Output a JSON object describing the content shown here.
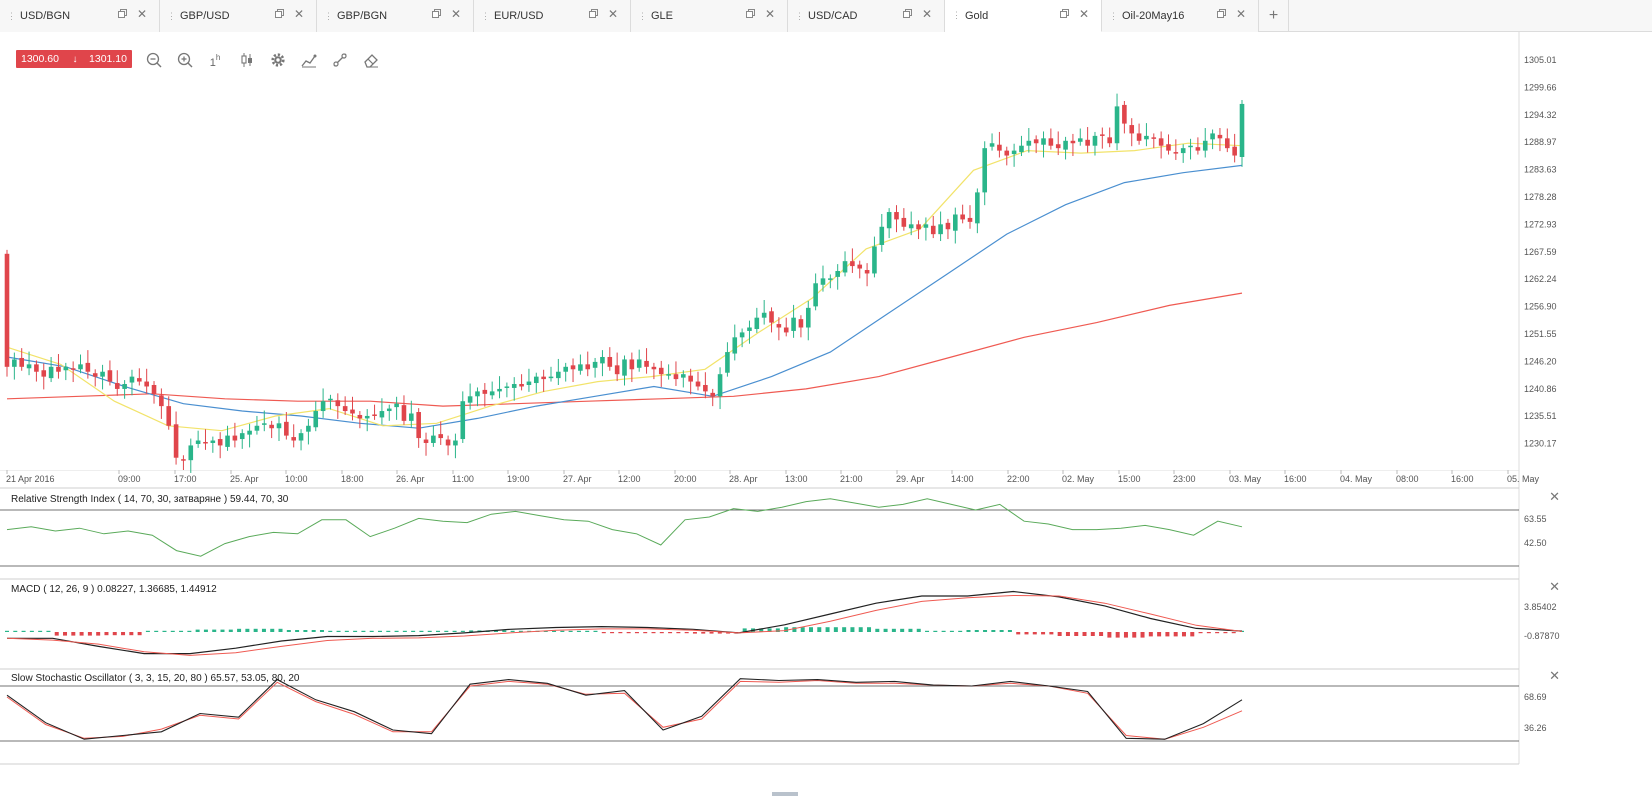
{
  "tabs": [
    {
      "label": "USD/BGN",
      "active": false
    },
    {
      "label": "GBP/USD",
      "active": false
    },
    {
      "label": "GBP/BGN",
      "active": false
    },
    {
      "label": "EUR/USD",
      "active": false
    },
    {
      "label": "GLE",
      "active": false
    },
    {
      "label": "USD/CAD",
      "active": false
    },
    {
      "label": "Gold",
      "active": true
    },
    {
      "label": "Oil-20May16",
      "active": false
    }
  ],
  "add_tab_label": "+",
  "price_badge": {
    "bid": "1300.60",
    "ask": "1301.10",
    "direction": "down"
  },
  "toolbar": {
    "timeframe": "1",
    "timeframe_unit": "h"
  },
  "icons": {
    "zoom_out": "zoom-out-icon",
    "zoom_in": "zoom-in-icon",
    "timeframe": "timeframe-icon",
    "chart_type": "candlestick-icon",
    "settings": "gear-icon",
    "indicators": "indicators-icon",
    "drawing": "drawing-tools-icon",
    "eraser": "eraser-icon"
  },
  "colors": {
    "bull": "#2ab58a",
    "bear": "#e0454b",
    "ma_fast": "#f2e36a",
    "ma_mid": "#4a8fd0",
    "ma_slow": "#ef5a52",
    "rsi_line": "#5aaa5a",
    "macd_line": "#222222",
    "macd_signal": "#ef5a52",
    "stoch_k": "#222222",
    "stoch_d": "#ef5a52"
  },
  "price_axis": [
    "1305.01",
    "1299.66",
    "1294.32",
    "1288.97",
    "1283.63",
    "1278.28",
    "1272.93",
    "1267.59",
    "1262.24",
    "1256.90",
    "1251.55",
    "1246.20",
    "1240.86",
    "1235.51",
    "1230.17"
  ],
  "time_axis": [
    "21 Apr 2016",
    "09:00",
    "17:00",
    "25. Apr",
    "10:00",
    "18:00",
    "26. Apr",
    "11:00",
    "19:00",
    "27. Apr",
    "12:00",
    "20:00",
    "28. Apr",
    "13:00",
    "21:00",
    "29. Apr",
    "14:00",
    "22:00",
    "02. May",
    "15:00",
    "23:00",
    "03. May",
    "16:00",
    "04. May",
    "08:00",
    "16:00",
    "05. May"
  ],
  "rsi": {
    "label": "Relative Strength Index ( 14, 70, 30, затваряне ) 59.44, 70, 30",
    "axis": [
      "63.55",
      "42.50"
    ]
  },
  "macd": {
    "label": "MACD ( 12, 26, 9 ) 0.08227, 1.36685, 1.44912",
    "axis": [
      "3.85402",
      "-0.87870"
    ]
  },
  "stoch": {
    "label": "Slow Stochastic Oscillator ( 3, 3, 15, 20, 80 ) 65.57, 53.05, 80, 20",
    "axis": [
      "68.69",
      "36.26"
    ]
  },
  "chart_data": {
    "type": "candlestick",
    "instrument": "Gold",
    "ylim": [
      1227,
      1308
    ],
    "closes": [
      1248,
      1249.5,
      1248,
      1248.5,
      1247,
      1246,
      1248,
      1247,
      1248,
      1247.5,
      1248.5,
      1247,
      1246,
      1247,
      1245,
      1243.5,
      1244.5,
      1246,
      1245,
      1244,
      1242.5,
      1240,
      1236,
      1229.5,
      1229,
      1232,
      1233,
      1232.5,
      1233,
      1232,
      1234,
      1233,
      1234.5,
      1235,
      1236,
      1236.5,
      1235.5,
      1236.5,
      1234,
      1233,
      1234.5,
      1236,
      1239,
      1241,
      1241.5,
      1240,
      1239,
      1238.5,
      1237.5,
      1238,
      1238,
      1239,
      1239.5,
      1240.5,
      1237,
      1238.5,
      1233.5,
      1232.5,
      1234,
      1233.5,
      1232,
      1233,
      1241,
      1242,
      1243,
      1242.5,
      1243,
      1243.5,
      1244,
      1244.5,
      1244,
      1245,
      1246,
      1245.5,
      1246,
      1247,
      1248,
      1247.5,
      1248.5,
      1247.5,
      1249,
      1250,
      1248,
      1246.5,
      1249.5,
      1247.5,
      1249.5,
      1248,
      1247.5,
      1246.5,
      1246.5,
      1245.5,
      1246.5,
      1245,
      1244,
      1243,
      1242,
      1246.5,
      1251,
      1254,
      1255,
      1256,
      1258,
      1259,
      1257,
      1256,
      1255,
      1258,
      1256,
      1260,
      1265,
      1266,
      1266,
      1267.5,
      1269.5,
      1268.5,
      1268,
      1267,
      1272.5,
      1276.5,
      1279.5,
      1278,
      1276.5,
      1277,
      1276,
      1277,
      1275,
      1277,
      1276,
      1279,
      1278,
      1277.5,
      1283.5,
      1292.5,
      1293.5,
      1292,
      1291,
      1292,
      1293,
      1294,
      1293.5,
      1294.5,
      1293,
      1292.5,
      1294,
      1293.5,
      1294.5,
      1293,
      1295,
      1295,
      1293.5,
      1301,
      1297.5,
      1295.5,
      1294,
      1295,
      1294.5,
      1293,
      1292,
      1291.5,
      1292.5,
      1293,
      1292,
      1294,
      1295.5,
      1294.5,
      1292.5,
      1291,
      1301.5
    ],
    "ma_fast": [
      1252,
      1248.5,
      1241,
      1236,
      1235,
      1238,
      1239.5,
      1236,
      1236.5,
      1240,
      1243,
      1245,
      1246,
      1247.5,
      1255,
      1262,
      1272,
      1276,
      1288,
      1292,
      1291.5,
      1292,
      1293.5,
      1293
    ],
    "ma_mid": [
      1250,
      1248,
      1244,
      1240.5,
      1239,
      1238,
      1236.5,
      1235.5,
      1237.5,
      1240,
      1242,
      1244,
      1242,
      1246,
      1251,
      1259,
      1267,
      1275,
      1281,
      1285.5,
      1287.5,
      1289
    ],
    "ma_slow": [
      1241.5,
      1242,
      1242.5,
      1241.5,
      1241,
      1241,
      1240,
      1240.5,
      1241,
      1241.5,
      1242,
      1243.5,
      1246,
      1250,
      1254,
      1257,
      1260.5,
      1263
    ],
    "rsi_values": [
      56,
      58,
      55,
      57,
      53,
      55,
      52,
      41,
      37,
      46,
      51,
      54,
      53,
      63,
      63,
      51,
      57,
      64,
      62,
      61,
      67,
      69,
      66,
      63,
      62,
      56,
      53,
      45,
      63,
      65,
      71,
      69,
      72,
      76,
      78,
      75,
      72,
      74,
      78,
      74,
      70,
      74,
      62,
      60,
      56,
      56,
      57,
      59,
      56,
      52,
      62,
      58
    ],
    "macd_values": [
      -0.7,
      -0.7,
      -1.6,
      -2.4,
      -2.4,
      -1.8,
      -1.0,
      -0.5,
      -0.5,
      -0.4,
      -0.1,
      0.3,
      0.5,
      0.6,
      0.5,
      0.3,
      -0.1,
      0.8,
      2.0,
      3.2,
      4.0,
      4.0,
      4.5,
      3.9,
      2.9,
      1.5,
      0.4,
      0.1
    ],
    "stoch_k": [
      70,
      40,
      22,
      26,
      30,
      50,
      46,
      87,
      65,
      52,
      32,
      28,
      82,
      87,
      83,
      70,
      75,
      32,
      47,
      88,
      86,
      87,
      84,
      85,
      81,
      80,
      85,
      80,
      74,
      23,
      22,
      39,
      65
    ],
    "stoch_d": [
      68,
      38,
      23,
      25,
      33,
      48,
      44,
      84,
      63,
      49,
      30,
      30,
      80,
      85,
      82,
      71,
      72,
      35,
      44,
      85,
      84,
      86,
      83,
      83,
      81,
      80,
      83,
      80,
      72,
      26,
      22,
      35,
      53
    ]
  }
}
